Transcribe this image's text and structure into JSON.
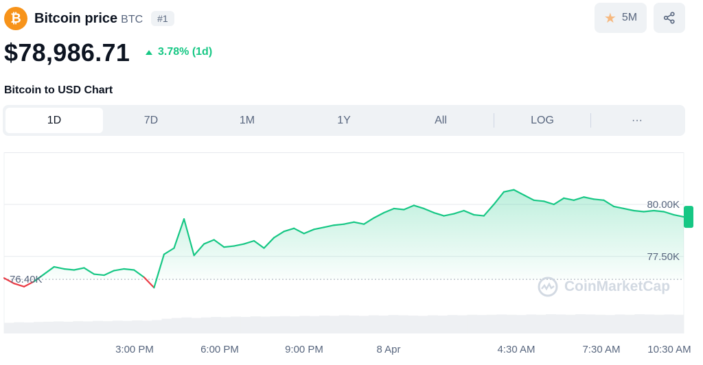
{
  "header": {
    "logo_glyph": "₿",
    "name": "Bitcoin price",
    "symbol": "BTC",
    "rank": "#1",
    "watchlist_count": "5M",
    "star_icon": "star-icon",
    "share_icon": "share-icon"
  },
  "price": {
    "value": "$78,986.71",
    "change": "3.78% (1d)",
    "direction": "up"
  },
  "chart_title": "Bitcoin to USD Chart",
  "tabs": [
    {
      "label": "1D",
      "active": true
    },
    {
      "label": "7D",
      "active": false
    },
    {
      "label": "1M",
      "active": false
    },
    {
      "label": "1Y",
      "active": false
    },
    {
      "label": "All",
      "active": false
    },
    {
      "label": "LOG",
      "active": false
    },
    {
      "label": "···",
      "active": false
    }
  ],
  "colors": {
    "up": "#16c784",
    "down": "#ea3943",
    "bitcoin": "#f7931a"
  },
  "chart_data": {
    "type": "area",
    "xlabel": "",
    "ylabel": "",
    "x_ticks": [
      "3:00 PM",
      "6:00 PM",
      "9:00 PM",
      "8 Apr",
      "4:30 AM",
      "7:30 AM",
      "10:30 AM"
    ],
    "y_ticks": [
      "80.00K",
      "77.50K"
    ],
    "y_tick_values": [
      80000,
      77500
    ],
    "ylim": [
      74000,
      82500
    ],
    "reference_label": "76.40K",
    "reference_value": 76400,
    "grid": true,
    "watermark": "CoinMarketCap",
    "series": [
      {
        "color_above": "#16c784",
        "color_below": "#ea3943",
        "points": [
          [
            0,
            76460
          ],
          [
            1,
            76200
          ],
          [
            2,
            76050
          ],
          [
            3,
            76300
          ],
          [
            4,
            76650
          ],
          [
            5,
            77000
          ],
          [
            6,
            76900
          ],
          [
            7,
            76850
          ],
          [
            8,
            76950
          ],
          [
            9,
            76650
          ],
          [
            10,
            76600
          ],
          [
            11,
            76820
          ],
          [
            12,
            76900
          ],
          [
            13,
            76850
          ],
          [
            14,
            76500
          ],
          [
            15,
            76000
          ],
          [
            16,
            77600
          ],
          [
            17,
            77900
          ],
          [
            18,
            79300
          ],
          [
            19,
            77550
          ],
          [
            20,
            78100
          ],
          [
            21,
            78300
          ],
          [
            22,
            77950
          ],
          [
            23,
            78000
          ],
          [
            24,
            78100
          ],
          [
            25,
            78250
          ],
          [
            26,
            77900
          ],
          [
            27,
            78400
          ],
          [
            28,
            78700
          ],
          [
            29,
            78850
          ],
          [
            30,
            78600
          ],
          [
            31,
            78800
          ],
          [
            32,
            78900
          ],
          [
            33,
            79000
          ],
          [
            34,
            79050
          ],
          [
            35,
            79150
          ],
          [
            36,
            79050
          ],
          [
            37,
            79350
          ],
          [
            38,
            79600
          ],
          [
            39,
            79800
          ],
          [
            40,
            79750
          ],
          [
            41,
            79950
          ],
          [
            42,
            79800
          ],
          [
            43,
            79600
          ],
          [
            44,
            79450
          ],
          [
            45,
            79550
          ],
          [
            46,
            79700
          ],
          [
            47,
            79500
          ],
          [
            48,
            79450
          ],
          [
            49,
            80000
          ],
          [
            50,
            80600
          ],
          [
            51,
            80700
          ],
          [
            52,
            80450
          ],
          [
            53,
            80200
          ],
          [
            54,
            80150
          ],
          [
            55,
            80000
          ],
          [
            56,
            80300
          ],
          [
            57,
            80200
          ],
          [
            58,
            80350
          ],
          [
            59,
            80250
          ],
          [
            60,
            80200
          ],
          [
            61,
            79900
          ],
          [
            62,
            79800
          ],
          [
            63,
            79700
          ],
          [
            64,
            79650
          ],
          [
            65,
            79700
          ],
          [
            66,
            79650
          ],
          [
            67,
            79500
          ],
          [
            68,
            79400
          ]
        ]
      }
    ],
    "volume": [
      40,
      42,
      41,
      43,
      44,
      45,
      44,
      46,
      45,
      47,
      46,
      48,
      47,
      49,
      48,
      50,
      55,
      58,
      60,
      58,
      60,
      62,
      61,
      63,
      62,
      64,
      63,
      64,
      65,
      64,
      66,
      65,
      67,
      66,
      68,
      67,
      66,
      68,
      67,
      69,
      68,
      67,
      66,
      68,
      67,
      69,
      68,
      70,
      69,
      70,
      71,
      70,
      69,
      71,
      70,
      72,
      71,
      70,
      72,
      71,
      70,
      69,
      71,
      70,
      72,
      71,
      70,
      71,
      70
    ]
  }
}
